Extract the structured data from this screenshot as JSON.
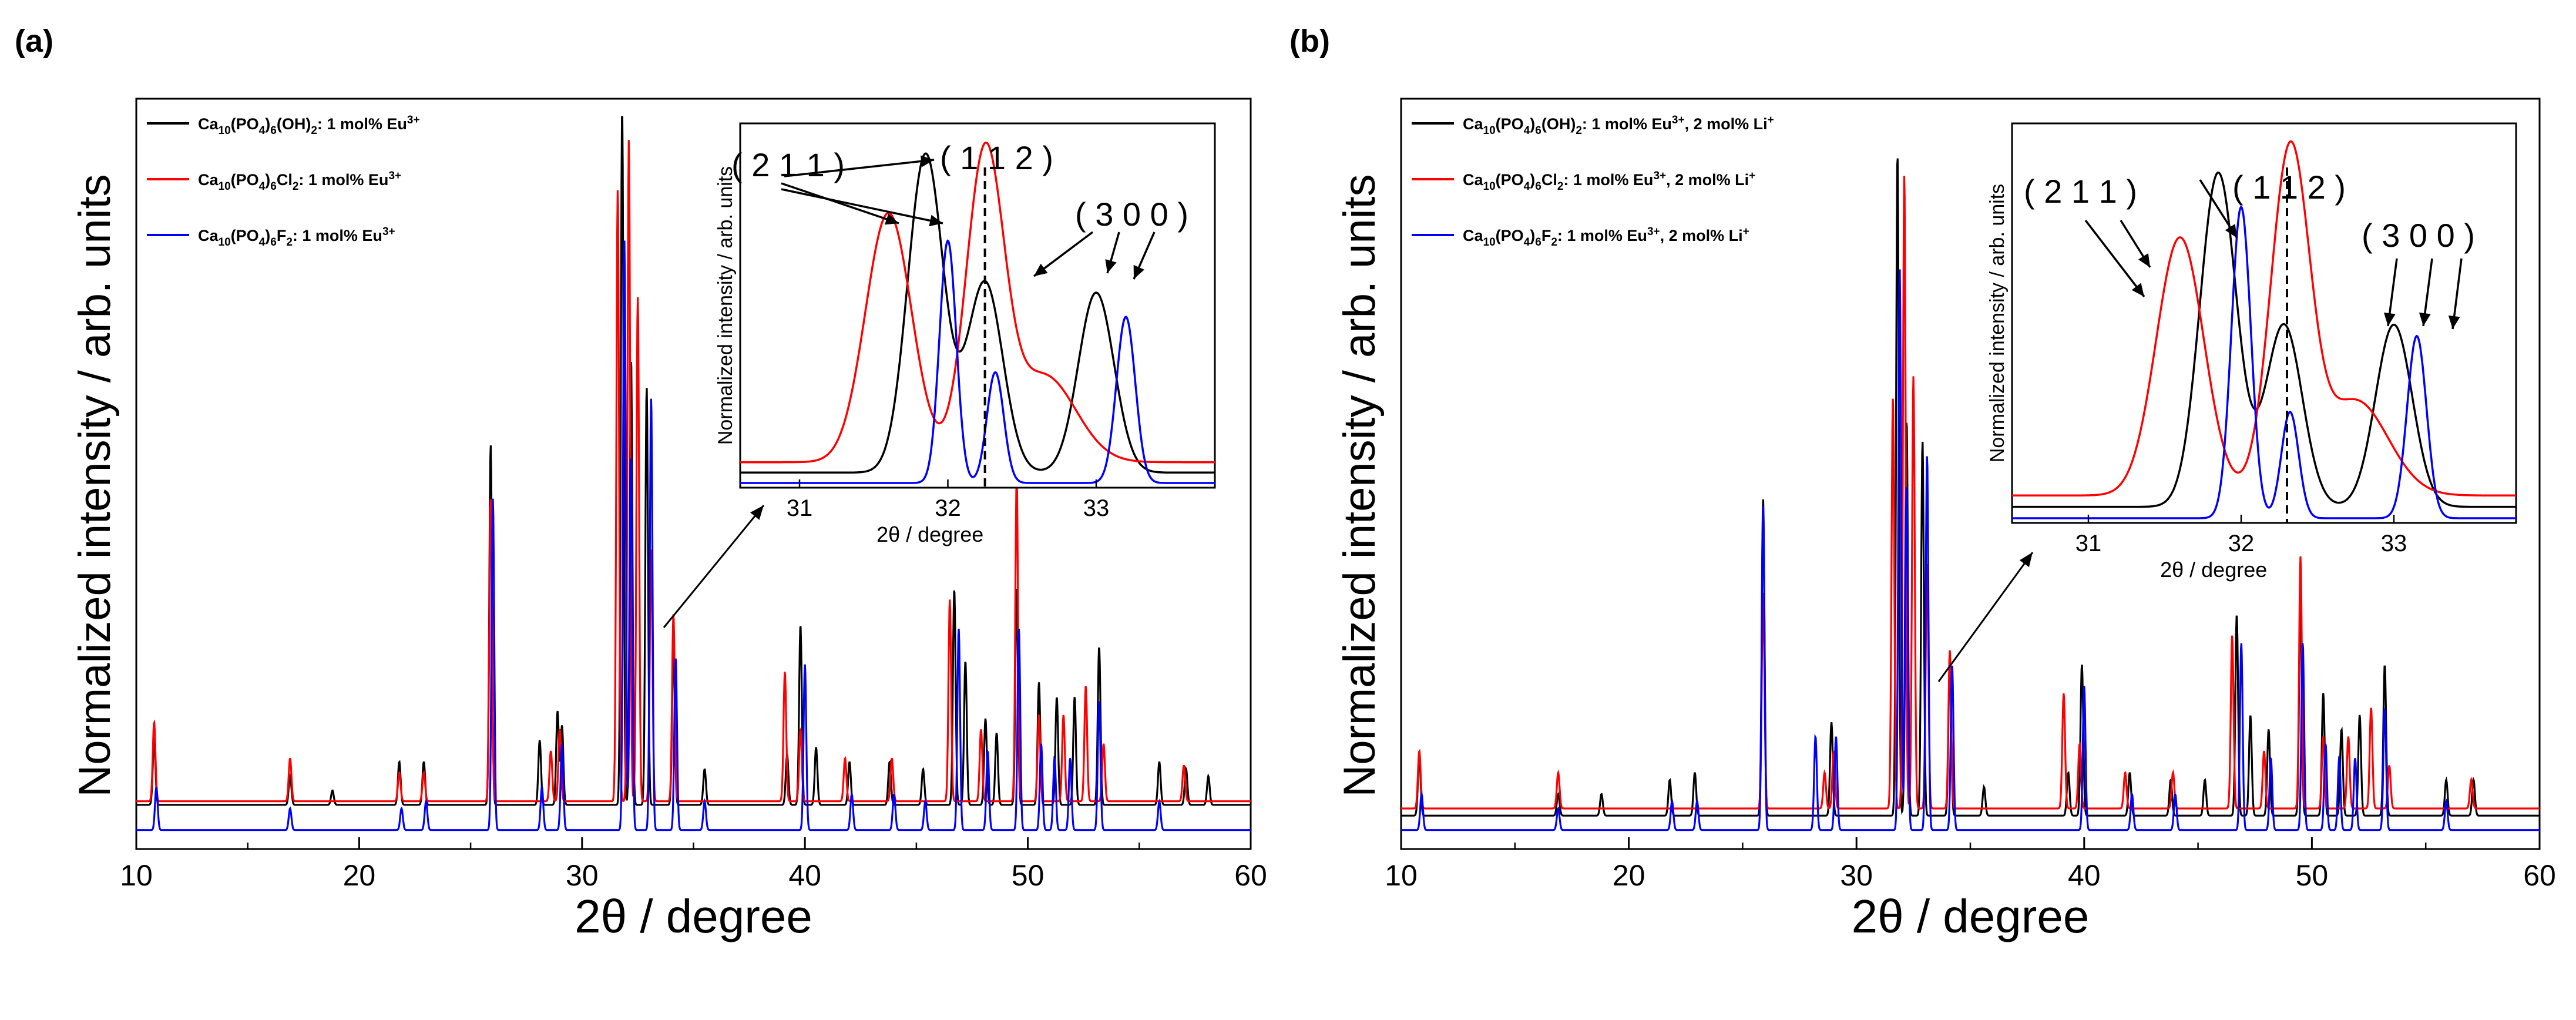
{
  "colors": {
    "black": "#000000",
    "red": "#ff0000",
    "blue": "#0000ff",
    "axis": "#000000"
  },
  "chart_data": [
    {
      "panel": "(a)",
      "type": "line",
      "xlabel": "2θ / degree",
      "ylabel": "Normalized intensity / arb. units",
      "xlim": [
        10,
        60
      ],
      "xticks": [
        10,
        20,
        30,
        40,
        50,
        60
      ],
      "ylim": [
        0,
        1.0
      ],
      "legend_position": "top-left",
      "legend_labels": [
        {
          "base": "Ca",
          "sub1": "10",
          "mid": "(PO",
          "sub2": "4",
          "mid2": ")",
          "sub3": "6",
          "tail": "(OH)",
          "sub4": "2",
          "rest": ": 1 mol% Eu",
          "sup": "3+"
        },
        {
          "base": "Ca",
          "sub1": "10",
          "mid": "(PO",
          "sub2": "4",
          "mid2": ")",
          "sub3": "6",
          "tail": "Cl",
          "sub4": "2",
          "rest": ": 1 mol% Eu",
          "sup": "3+"
        },
        {
          "base": "Ca",
          "sub1": "10",
          "mid": "(PO",
          "sub2": "4",
          "mid2": ")",
          "sub3": "6",
          "tail": "F",
          "sub4": "2",
          "rest": ": 1 mol% Eu",
          "sup": "3+"
        }
      ],
      "series": [
        {
          "name": "Ca10(PO4)6(OH)2: 1 mol% Eu3+",
          "color": "#000000",
          "baseline": 0.045,
          "peaks": [
            [
              10.8,
              0.09
            ],
            [
              16.9,
              0.04
            ],
            [
              18.8,
              0.02
            ],
            [
              21.8,
              0.06
            ],
            [
              22.9,
              0.06
            ],
            [
              25.9,
              0.5
            ],
            [
              28.1,
              0.09
            ],
            [
              28.9,
              0.13
            ],
            [
              29.1,
              0.11
            ],
            [
              31.8,
              0.98
            ],
            [
              32.2,
              0.62
            ],
            [
              32.9,
              0.58
            ],
            [
              34.1,
              0.22
            ],
            [
              35.5,
              0.05
            ],
            [
              39.2,
              0.07
            ],
            [
              39.8,
              0.25
            ],
            [
              40.5,
              0.08
            ],
            [
              42.0,
              0.06
            ],
            [
              43.8,
              0.06
            ],
            [
              45.3,
              0.05
            ],
            [
              46.7,
              0.3
            ],
            [
              47.2,
              0.2
            ],
            [
              48.1,
              0.12
            ],
            [
              48.6,
              0.1
            ],
            [
              49.5,
              0.3
            ],
            [
              50.5,
              0.17
            ],
            [
              51.3,
              0.15
            ],
            [
              52.1,
              0.15
            ],
            [
              53.2,
              0.22
            ],
            [
              55.9,
              0.06
            ],
            [
              57.1,
              0.05
            ],
            [
              58.1,
              0.04
            ]
          ]
        },
        {
          "name": "Ca10(PO4)6Cl2: 1 mol% Eu3+",
          "color": "#ff0000",
          "baseline": 0.05,
          "peaks": [
            [
              10.8,
              0.11
            ],
            [
              16.9,
              0.06
            ],
            [
              21.8,
              0.04
            ],
            [
              22.9,
              0.04
            ],
            [
              25.9,
              0.42
            ],
            [
              28.6,
              0.07
            ],
            [
              29.0,
              0.1
            ],
            [
              31.6,
              0.85
            ],
            [
              32.1,
              0.92
            ],
            [
              32.5,
              0.7
            ],
            [
              33.1,
              0.35
            ],
            [
              34.1,
              0.26
            ],
            [
              39.1,
              0.18
            ],
            [
              39.8,
              0.1
            ],
            [
              41.8,
              0.06
            ],
            [
              43.9,
              0.06
            ],
            [
              46.5,
              0.28
            ],
            [
              47.9,
              0.1
            ],
            [
              49.5,
              0.45
            ],
            [
              50.5,
              0.12
            ],
            [
              51.6,
              0.12
            ],
            [
              52.6,
              0.16
            ],
            [
              53.4,
              0.08
            ],
            [
              57.0,
              0.05
            ]
          ]
        },
        {
          "name": "Ca10(PO4)6F2: 1 mol% Eu3+",
          "color": "#0000ff",
          "baseline": 0.01,
          "peaks": [
            [
              10.9,
              0.06
            ],
            [
              16.9,
              0.03
            ],
            [
              21.9,
              0.03
            ],
            [
              23.0,
              0.04
            ],
            [
              26.0,
              0.46
            ],
            [
              28.2,
              0.06
            ],
            [
              29.1,
              0.12
            ],
            [
              31.9,
              0.82
            ],
            [
              32.2,
              0.52
            ],
            [
              33.1,
              0.6
            ],
            [
              34.2,
              0.24
            ],
            [
              35.5,
              0.04
            ],
            [
              40.0,
              0.23
            ],
            [
              42.1,
              0.05
            ],
            [
              44.0,
              0.05
            ],
            [
              45.4,
              0.04
            ],
            [
              46.9,
              0.28
            ],
            [
              48.2,
              0.11
            ],
            [
              49.6,
              0.28
            ],
            [
              50.6,
              0.12
            ],
            [
              51.2,
              0.1
            ],
            [
              51.9,
              0.1
            ],
            [
              53.2,
              0.18
            ],
            [
              55.9,
              0.04
            ]
          ]
        }
      ],
      "inset": {
        "xlabel": "2θ / degree",
        "ylabel": "Normalized intensity / arb. units",
        "xlim": [
          30.6,
          33.8
        ],
        "xticks": [
          31,
          32,
          33
        ],
        "dashed_x": 32.25,
        "annotations": [
          "( 2 1 1 )",
          "( 1 1 2 )",
          "( 3 0 0 )"
        ],
        "series": [
          {
            "color": "#000000",
            "baseline": 0.03,
            "peaks": [
              [
                31.85,
                0.92,
                0.17
              ],
              [
                32.25,
                0.55,
                0.17
              ],
              [
                33.0,
                0.52,
                0.17
              ]
            ]
          },
          {
            "color": "#ff0000",
            "baseline": 0.06,
            "peaks": [
              [
                31.6,
                0.72,
                0.22
              ],
              [
                32.25,
                0.88,
                0.18
              ],
              [
                32.65,
                0.25,
                0.3
              ]
            ]
          },
          {
            "color": "#0000ff",
            "baseline": 0.0,
            "peaks": [
              [
                32.0,
                0.7,
                0.08
              ],
              [
                32.32,
                0.32,
                0.08
              ],
              [
                33.2,
                0.48,
                0.09
              ]
            ]
          }
        ]
      }
    },
    {
      "panel": "(b)",
      "type": "line",
      "xlabel": "2θ / degree",
      "ylabel": "Normalized intensity / arb. units",
      "xlim": [
        10,
        60
      ],
      "xticks": [
        10,
        20,
        30,
        40,
        50,
        60
      ],
      "ylim": [
        0,
        1.0
      ],
      "legend_position": "top-left",
      "legend_labels": [
        {
          "base": "Ca",
          "sub1": "10",
          "mid": "(PO",
          "sub2": "4",
          "mid2": ")",
          "sub3": "6",
          "tail": "(OH)",
          "sub4": "2",
          "rest": ": 1 mol% Eu",
          "sup": "3+",
          "rest2": ", 2 mol% Li",
          "sup2": "+"
        },
        {
          "base": "Ca",
          "sub1": "10",
          "mid": "(PO",
          "sub2": "4",
          "mid2": ")",
          "sub3": "6",
          "tail": "Cl",
          "sub4": "2",
          "rest": ": 1 mol% Eu",
          "sup": "3+",
          "rest2": ", 2 mol% Li",
          "sup2": "+"
        },
        {
          "base": "Ca",
          "sub1": "10",
          "mid": "(PO",
          "sub2": "4",
          "mid2": ")",
          "sub3": "6",
          "tail": "F",
          "sub4": "2",
          "rest": ": 1 mol% Eu",
          "sup": "3+",
          "rest2": ", 2 mol% Li",
          "sup2": "+"
        }
      ],
      "series": [
        {
          "name": "Ca10(PO4)6(OH)2: 1 mol% Eu3+, 2 mol% Li+",
          "color": "#000000",
          "baseline": 0.03,
          "peaks": [
            [
              10.8,
              0.08
            ],
            [
              16.9,
              0.03
            ],
            [
              18.8,
              0.03
            ],
            [
              21.8,
              0.05
            ],
            [
              22.9,
              0.06
            ],
            [
              25.9,
              0.44
            ],
            [
              28.9,
              0.13
            ],
            [
              31.8,
              0.92
            ],
            [
              32.2,
              0.55
            ],
            [
              32.9,
              0.52
            ],
            [
              34.1,
              0.22
            ],
            [
              35.6,
              0.04
            ],
            [
              39.3,
              0.06
            ],
            [
              39.9,
              0.21
            ],
            [
              42.0,
              0.06
            ],
            [
              43.8,
              0.05
            ],
            [
              45.3,
              0.05
            ],
            [
              46.7,
              0.28
            ],
            [
              47.3,
              0.14
            ],
            [
              48.1,
              0.12
            ],
            [
              49.5,
              0.3
            ],
            [
              50.5,
              0.17
            ],
            [
              51.3,
              0.12
            ],
            [
              52.1,
              0.14
            ],
            [
              53.2,
              0.21
            ],
            [
              55.9,
              0.05
            ],
            [
              57.1,
              0.05
            ]
          ]
        },
        {
          "name": "Ca10(PO4)6Cl2: 1 mol% Eu3+, 2 mol% Li+",
          "color": "#ff0000",
          "baseline": 0.04,
          "peaks": [
            [
              10.8,
              0.08
            ],
            [
              16.9,
              0.05
            ],
            [
              25.9,
              0.3
            ],
            [
              28.6,
              0.05
            ],
            [
              29.0,
              0.08
            ],
            [
              31.6,
              0.57
            ],
            [
              32.1,
              0.88
            ],
            [
              32.5,
              0.6
            ],
            [
              33.1,
              0.34
            ],
            [
              34.1,
              0.22
            ],
            [
              39.1,
              0.16
            ],
            [
              39.8,
              0.09
            ],
            [
              41.8,
              0.05
            ],
            [
              43.9,
              0.05
            ],
            [
              46.5,
              0.24
            ],
            [
              47.9,
              0.08
            ],
            [
              49.5,
              0.35
            ],
            [
              50.5,
              0.1
            ],
            [
              51.6,
              0.1
            ],
            [
              52.6,
              0.14
            ],
            [
              53.4,
              0.06
            ],
            [
              57.0,
              0.04
            ]
          ]
        },
        {
          "name": "Ca10(PO4)6F2: 1 mol% Eu3+, 2 mol% Li+",
          "color": "#0000ff",
          "baseline": 0.01,
          "peaks": [
            [
              10.9,
              0.05
            ],
            [
              16.9,
              0.03
            ],
            [
              21.9,
              0.04
            ],
            [
              23.0,
              0.04
            ],
            [
              25.9,
              0.45
            ],
            [
              28.2,
              0.13
            ],
            [
              29.1,
              0.13
            ],
            [
              31.9,
              0.78
            ],
            [
              32.2,
              0.48
            ],
            [
              33.1,
              0.52
            ],
            [
              34.2,
              0.23
            ],
            [
              40.0,
              0.2
            ],
            [
              42.1,
              0.05
            ],
            [
              44.0,
              0.05
            ],
            [
              46.9,
              0.26
            ],
            [
              48.2,
              0.1
            ],
            [
              49.6,
              0.26
            ],
            [
              50.6,
              0.12
            ],
            [
              51.2,
              0.1
            ],
            [
              51.9,
              0.1
            ],
            [
              53.2,
              0.17
            ],
            [
              55.9,
              0.04
            ]
          ]
        }
      ],
      "inset": {
        "xlabel": "2θ / degree",
        "ylabel": "Normalized intensity / arb. units",
        "xlim": [
          30.5,
          33.8
        ],
        "xticks": [
          31,
          32,
          33
        ],
        "dashed_x": 32.3,
        "annotations": [
          "( 2 1 1 )",
          "( 1 1 2 )",
          "( 3 0 0 )"
        ],
        "series": [
          {
            "color": "#000000",
            "baseline": 0.03,
            "peaks": [
              [
                31.85,
                0.88,
                0.17
              ],
              [
                32.28,
                0.48,
                0.17
              ],
              [
                33.0,
                0.48,
                0.17
              ]
            ]
          },
          {
            "color": "#ff0000",
            "baseline": 0.06,
            "peaks": [
              [
                31.6,
                0.68,
                0.22
              ],
              [
                32.32,
                0.9,
                0.18
              ],
              [
                32.75,
                0.25,
                0.3
              ]
            ]
          },
          {
            "color": "#0000ff",
            "baseline": 0.0,
            "peaks": [
              [
                32.0,
                0.82,
                0.09
              ],
              [
                32.32,
                0.28,
                0.08
              ],
              [
                33.15,
                0.48,
                0.09
              ]
            ]
          }
        ]
      }
    }
  ]
}
